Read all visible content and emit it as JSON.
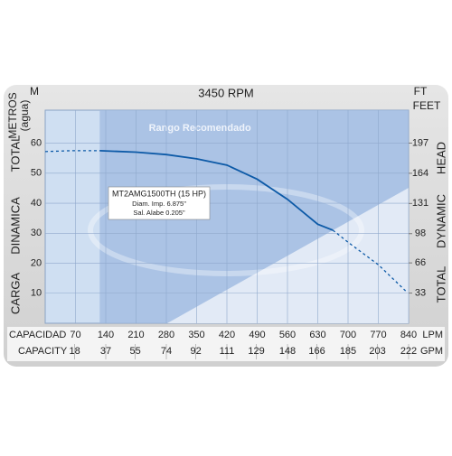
{
  "chart_data": {
    "type": "line",
    "title": "3450 RPM",
    "left_unit": "M",
    "left_axis_title": [
      "METROS",
      "(agua)"
    ],
    "right_unit": [
      "FT",
      "FEET"
    ],
    "left_labels": [
      "CARGA",
      "DINAMICA",
      "TOTAL"
    ],
    "right_labels": [
      "TOTAL",
      "DYNAMIC",
      "HEAD"
    ],
    "x_label": "CAPACIDAD",
    "x_unit": "LPM",
    "x2_label": "CAPACITY",
    "x2_unit": "GPM",
    "region_label": "Rango Recomendado",
    "recommended_range": [
      126,
      840
    ],
    "annotation": [
      "MT2AMG1500TH (15 HP)",
      "Diam. Imp. 6.875\"",
      "Sal. Alabe 0.205\""
    ],
    "xlim": [
      0,
      840
    ],
    "xticks": [
      70,
      140,
      210,
      280,
      350,
      420,
      490,
      560,
      630,
      700,
      770,
      840
    ],
    "x2lim": [
      0,
      222
    ],
    "x2ticks": [
      18,
      37,
      55,
      74,
      92,
      111,
      129,
      148,
      166,
      185,
      203,
      222
    ],
    "ylim": [
      0,
      71
    ],
    "yticks": [
      10,
      20,
      30,
      40,
      50,
      60
    ],
    "y2lim": [
      0,
      233
    ],
    "y2ticks": [
      33,
      66,
      98,
      131,
      164,
      197
    ],
    "grid": true,
    "series": [
      {
        "name": "MT2AMG1500TH (15 HP)",
        "color": "#0d5aa7",
        "dashed": false,
        "x": [
          126,
          210,
          280,
          350,
          420,
          490,
          560,
          630,
          665
        ],
        "values": [
          57.5,
          57,
          56.2,
          54.8,
          52.7,
          48,
          41.3,
          33,
          31
        ]
      },
      {
        "color": "#0d5aa7",
        "dashed": true,
        "x": [
          0,
          60,
          126
        ],
        "values": [
          57.2,
          57.5,
          57.5
        ]
      },
      {
        "color": "#0d5aa7",
        "dashed": true,
        "x": [
          665,
          700,
          770,
          833
        ],
        "values": [
          31,
          27,
          19.5,
          10.8
        ]
      }
    ]
  }
}
